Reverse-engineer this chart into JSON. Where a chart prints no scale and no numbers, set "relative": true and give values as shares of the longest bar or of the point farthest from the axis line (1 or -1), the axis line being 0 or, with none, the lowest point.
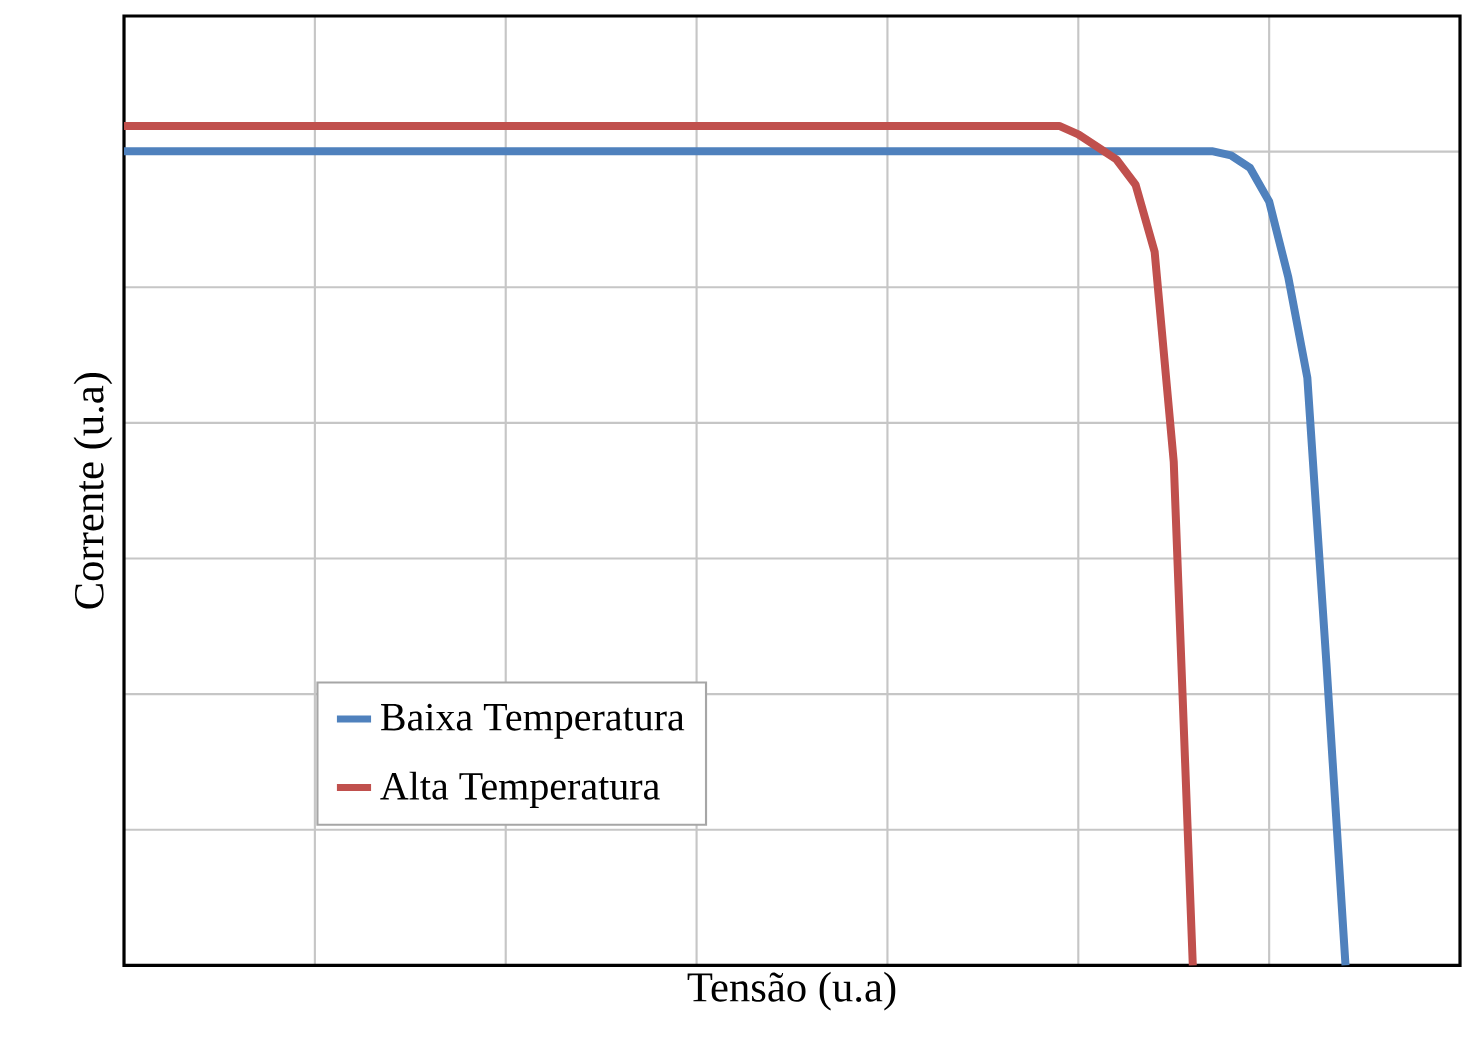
{
  "chart_data": {
    "type": "line",
    "xlabel": "Tensão (u.a)",
    "ylabel": "Corrente (u.a)",
    "relative": true,
    "grid": true,
    "legend": "bottom left",
    "categories": [
      null,
      null,
      null,
      null,
      null,
      null,
      null,
      null,
      null,
      null,
      null,
      null,
      null,
      null,
      null,
      null,
      null,
      null,
      null,
      null,
      null,
      null,
      null,
      null,
      null,
      null,
      null,
      null,
      null,
      null,
      null,
      null,
      null,
      null,
      null,
      null,
      null,
      null,
      null,
      null,
      null,
      null,
      null,
      null,
      null,
      null,
      null,
      null,
      null,
      null,
      null,
      null,
      null,
      null,
      null,
      null,
      null,
      null,
      null,
      null,
      null,
      null,
      null,
      null,
      null,
      null,
      null,
      null,
      null,
      null,
      null
    ],
    "series": [
      {
        "name": "Baixa Temperatura",
        "color": "#4f81bd",
        "values": [
          0.97,
          0.97,
          0.97,
          0.97,
          0.97,
          0.97,
          0.97,
          0.97,
          0.97,
          0.97,
          0.97,
          0.97,
          0.97,
          0.97,
          0.97,
          0.97,
          0.97,
          0.97,
          0.97,
          0.97,
          0.97,
          0.97,
          0.97,
          0.97,
          0.97,
          0.97,
          0.97,
          0.97,
          0.97,
          0.97,
          0.97,
          0.97,
          0.97,
          0.97,
          0.97,
          0.97,
          0.97,
          0.97,
          0.97,
          0.97,
          0.97,
          0.97,
          0.97,
          0.97,
          0.97,
          0.97,
          0.97,
          0.97,
          0.97,
          0.97,
          0.97,
          0.97,
          0.97,
          0.97,
          0.97,
          0.97,
          0.97,
          0.97,
          0.965,
          0.95,
          0.91,
          0.82,
          0.7,
          0.36,
          0,
          null,
          null,
          null,
          null,
          null,
          null
        ]
      },
      {
        "name": "Alta Temperatura",
        "color": "#c0504d",
        "values": [
          1,
          1,
          1,
          1,
          1,
          1,
          1,
          1,
          1,
          1,
          1,
          1,
          1,
          1,
          1,
          1,
          1,
          1,
          1,
          1,
          1,
          1,
          1,
          1,
          1,
          1,
          1,
          1,
          1,
          1,
          1,
          1,
          1,
          1,
          1,
          1,
          1,
          1,
          1,
          1,
          1,
          1,
          1,
          1,
          1,
          1,
          1,
          1,
          1,
          1,
          0.99,
          0.975,
          0.96,
          0.93,
          0.85,
          0.6,
          0,
          null,
          null,
          null,
          null,
          null,
          null,
          null,
          null,
          null,
          null,
          null,
          null,
          null,
          null
        ]
      }
    ]
  }
}
